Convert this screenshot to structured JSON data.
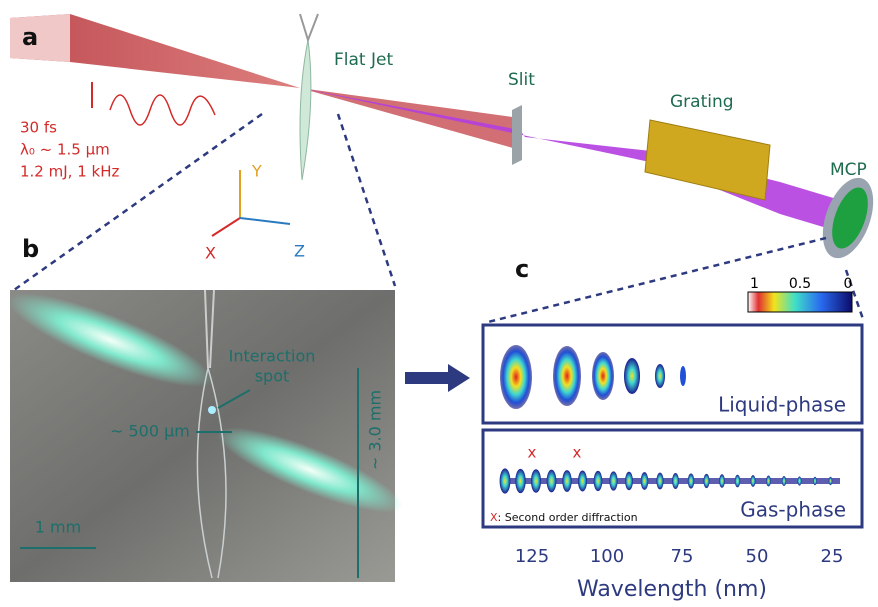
{
  "panel_a": {
    "label": "a",
    "flat_jet": "Flat Jet",
    "slit": "Slit",
    "grating": "Grating",
    "mcp": "MCP",
    "pulse": [
      "30 fs",
      "λ₀ ~ 1.5 µm",
      "1.2 mJ, 1 kHz"
    ],
    "axes": {
      "y": "Y",
      "x": "X",
      "z": "Z"
    }
  },
  "panel_b": {
    "label": "b",
    "interaction": [
      "Interaction",
      "spot"
    ],
    "width": "~ 500 µm",
    "height": "~ 3.0 mm",
    "scale": "1 mm"
  },
  "panel_c": {
    "label": "c",
    "colorbar": [
      1,
      0.5,
      0
    ],
    "liquid": "Liquid-phase",
    "gas": "Gas-phase",
    "markers": [
      "x",
      "x"
    ],
    "note_marker": "X",
    "note": ": Second order diffraction",
    "xticks": [
      125,
      100,
      75,
      50,
      25
    ],
    "xlabel": "Wavelength (nm)"
  }
}
